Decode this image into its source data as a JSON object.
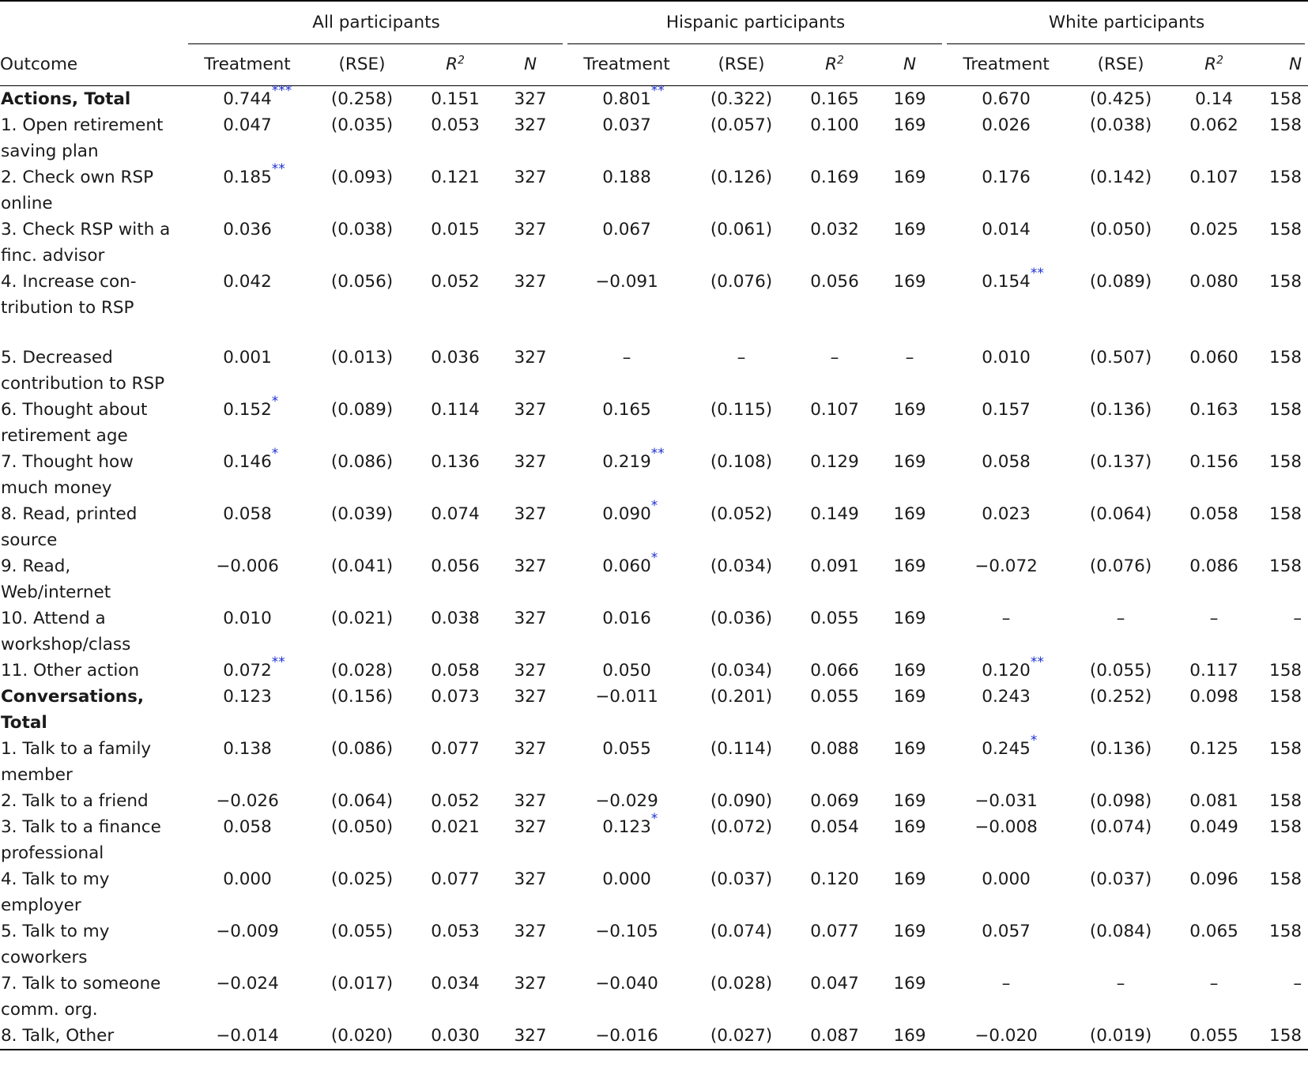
{
  "header": {
    "groups": [
      "All participants",
      "Hispanic participants",
      "White participants"
    ],
    "outcome_label": "Outcome",
    "treatment_label": "Treatment",
    "rse_label": "(RSE)",
    "r2_label": "R",
    "r2_sup": "2",
    "n_label": "N"
  },
  "rows": [
    {
      "label": "Actions, Total",
      "bold": true,
      "cells": [
        [
          "0.744",
          "***"
        ],
        [
          "(0.258)",
          ""
        ],
        [
          "0.151",
          ""
        ],
        [
          "327",
          ""
        ],
        [
          "0.801",
          "**"
        ],
        [
          "(0.322)",
          ""
        ],
        [
          "0.165",
          ""
        ],
        [
          "169",
          ""
        ],
        [
          "0.670",
          ""
        ],
        [
          "(0.425)",
          ""
        ],
        [
          "0.14",
          ""
        ],
        [
          "158",
          ""
        ]
      ]
    },
    {
      "label": "1. Open retirement saving plan",
      "bold": false,
      "cells": [
        [
          "0.047",
          ""
        ],
        [
          "(0.035)",
          ""
        ],
        [
          "0.053",
          ""
        ],
        [
          "327",
          ""
        ],
        [
          "0.037",
          ""
        ],
        [
          "(0.057)",
          ""
        ],
        [
          "0.100",
          ""
        ],
        [
          "169",
          ""
        ],
        [
          "0.026",
          ""
        ],
        [
          "(0.038)",
          ""
        ],
        [
          "0.062",
          ""
        ],
        [
          "158",
          ""
        ]
      ]
    },
    {
      "label": "2. Check own RSP online",
      "bold": false,
      "cells": [
        [
          "0.185",
          "**"
        ],
        [
          "(0.093)",
          ""
        ],
        [
          "0.121",
          ""
        ],
        [
          "327",
          ""
        ],
        [
          "0.188",
          ""
        ],
        [
          "(0.126)",
          ""
        ],
        [
          "0.169",
          ""
        ],
        [
          "169",
          ""
        ],
        [
          "0.176",
          ""
        ],
        [
          "(0.142)",
          ""
        ],
        [
          "0.107",
          ""
        ],
        [
          "158",
          ""
        ]
      ]
    },
    {
      "label": "3. Check RSP with a finc. advisor",
      "bold": false,
      "cells": [
        [
          "0.036",
          ""
        ],
        [
          "(0.038)",
          ""
        ],
        [
          "0.015",
          ""
        ],
        [
          "327",
          ""
        ],
        [
          "0.067",
          ""
        ],
        [
          "(0.061)",
          ""
        ],
        [
          "0.032",
          ""
        ],
        [
          "169",
          ""
        ],
        [
          "0.014",
          ""
        ],
        [
          "(0.050)",
          ""
        ],
        [
          "0.025",
          ""
        ],
        [
          "158",
          ""
        ]
      ]
    },
    {
      "label": "4. Increase con-tribution to RSP",
      "bold": false,
      "cells": [
        [
          "0.042",
          ""
        ],
        [
          "(0.056)",
          ""
        ],
        [
          "0.052",
          ""
        ],
        [
          "327",
          ""
        ],
        [
          "−0.091",
          ""
        ],
        [
          "(0.076)",
          ""
        ],
        [
          "0.056",
          ""
        ],
        [
          "169",
          ""
        ],
        [
          "0.154",
          "**"
        ],
        [
          "(0.089)",
          ""
        ],
        [
          "0.080",
          ""
        ],
        [
          "158",
          ""
        ]
      ]
    },
    {
      "label": "5. Decreased contribution to RSP",
      "bold": false,
      "cells": [
        [
          "0.001",
          ""
        ],
        [
          "(0.013)",
          ""
        ],
        [
          "0.036",
          ""
        ],
        [
          "327",
          ""
        ],
        [
          "–",
          ""
        ],
        [
          "–",
          ""
        ],
        [
          "–",
          ""
        ],
        [
          "–",
          ""
        ],
        [
          "0.010",
          ""
        ],
        [
          "(0.507)",
          ""
        ],
        [
          "0.060",
          ""
        ],
        [
          "158",
          ""
        ]
      ]
    },
    {
      "label": "6. Thought about retirement age",
      "bold": false,
      "cells": [
        [
          "0.152",
          "*"
        ],
        [
          "(0.089)",
          ""
        ],
        [
          "0.114",
          ""
        ],
        [
          "327",
          ""
        ],
        [
          "0.165",
          ""
        ],
        [
          "(0.115)",
          ""
        ],
        [
          "0.107",
          ""
        ],
        [
          "169",
          ""
        ],
        [
          "0.157",
          ""
        ],
        [
          "(0.136)",
          ""
        ],
        [
          "0.163",
          ""
        ],
        [
          "158",
          ""
        ]
      ]
    },
    {
      "label": "7. Thought how much money",
      "bold": false,
      "cells": [
        [
          "0.146",
          "*"
        ],
        [
          "(0.086)",
          ""
        ],
        [
          "0.136",
          ""
        ],
        [
          "327",
          ""
        ],
        [
          "0.219",
          "**"
        ],
        [
          "(0.108)",
          ""
        ],
        [
          "0.129",
          ""
        ],
        [
          "169",
          ""
        ],
        [
          "0.058",
          ""
        ],
        [
          "(0.137)",
          ""
        ],
        [
          "0.156",
          ""
        ],
        [
          "158",
          ""
        ]
      ]
    },
    {
      "label": "8. Read, printed source",
      "bold": false,
      "cells": [
        [
          "0.058",
          ""
        ],
        [
          "(0.039)",
          ""
        ],
        [
          "0.074",
          ""
        ],
        [
          "327",
          ""
        ],
        [
          "0.090",
          "*"
        ],
        [
          "(0.052)",
          ""
        ],
        [
          "0.149",
          ""
        ],
        [
          "169",
          ""
        ],
        [
          "0.023",
          ""
        ],
        [
          "(0.064)",
          ""
        ],
        [
          "0.058",
          ""
        ],
        [
          "158",
          ""
        ]
      ]
    },
    {
      "label": "9. Read, Web/internet",
      "bold": false,
      "cells": [
        [
          "−0.006",
          ""
        ],
        [
          "(0.041)",
          ""
        ],
        [
          "0.056",
          ""
        ],
        [
          "327",
          ""
        ],
        [
          "0.060",
          "*"
        ],
        [
          "(0.034)",
          ""
        ],
        [
          "0.091",
          ""
        ],
        [
          "169",
          ""
        ],
        [
          "−0.072",
          ""
        ],
        [
          "(0.076)",
          ""
        ],
        [
          "0.086",
          ""
        ],
        [
          "158",
          ""
        ]
      ]
    },
    {
      "label": "10. Attend a workshop/class",
      "bold": false,
      "cells": [
        [
          "0.010",
          ""
        ],
        [
          "(0.021)",
          ""
        ],
        [
          "0.038",
          ""
        ],
        [
          "327",
          ""
        ],
        [
          "0.016",
          ""
        ],
        [
          "(0.036)",
          ""
        ],
        [
          "0.055",
          ""
        ],
        [
          "169",
          ""
        ],
        [
          "–",
          ""
        ],
        [
          "–",
          ""
        ],
        [
          "–",
          ""
        ],
        [
          "–",
          ""
        ]
      ]
    },
    {
      "label": "11. Other action",
      "bold": false,
      "cells": [
        [
          "0.072",
          "**"
        ],
        [
          "(0.028)",
          ""
        ],
        [
          "0.058",
          ""
        ],
        [
          "327",
          ""
        ],
        [
          "0.050",
          ""
        ],
        [
          "(0.034)",
          ""
        ],
        [
          "0.066",
          ""
        ],
        [
          "169",
          ""
        ],
        [
          "0.120",
          "**"
        ],
        [
          "(0.055)",
          ""
        ],
        [
          "0.117",
          ""
        ],
        [
          "158",
          ""
        ]
      ]
    },
    {
      "label": "Conversations, Total",
      "bold": true,
      "cells": [
        [
          "0.123",
          ""
        ],
        [
          "(0.156)",
          ""
        ],
        [
          "0.073",
          ""
        ],
        [
          "327",
          ""
        ],
        [
          "−0.011",
          ""
        ],
        [
          "(0.201)",
          ""
        ],
        [
          "0.055",
          ""
        ],
        [
          "169",
          ""
        ],
        [
          "0.243",
          ""
        ],
        [
          "(0.252)",
          ""
        ],
        [
          "0.098",
          ""
        ],
        [
          "158",
          ""
        ]
      ]
    },
    {
      "label": "1. Talk to a family member",
      "bold": false,
      "cells": [
        [
          "0.138",
          ""
        ],
        [
          "(0.086)",
          ""
        ],
        [
          "0.077",
          ""
        ],
        [
          "327",
          ""
        ],
        [
          "0.055",
          ""
        ],
        [
          "(0.114)",
          ""
        ],
        [
          "0.088",
          ""
        ],
        [
          "169",
          ""
        ],
        [
          "0.245",
          "*"
        ],
        [
          "(0.136)",
          ""
        ],
        [
          "0.125",
          ""
        ],
        [
          "158",
          ""
        ]
      ]
    },
    {
      "label": "2. Talk to a friend",
      "bold": false,
      "cells": [
        [
          "−0.026",
          ""
        ],
        [
          "(0.064)",
          ""
        ],
        [
          "0.052",
          ""
        ],
        [
          "327",
          ""
        ],
        [
          "−0.029",
          ""
        ],
        [
          "(0.090)",
          ""
        ],
        [
          "0.069",
          ""
        ],
        [
          "169",
          ""
        ],
        [
          "−0.031",
          ""
        ],
        [
          "(0.098)",
          ""
        ],
        [
          "0.081",
          ""
        ],
        [
          "158",
          ""
        ]
      ]
    },
    {
      "label": "3. Talk to a finance professional",
      "bold": false,
      "cells": [
        [
          "0.058",
          ""
        ],
        [
          "(0.050)",
          ""
        ],
        [
          "0.021",
          ""
        ],
        [
          "327",
          ""
        ],
        [
          "0.123",
          "*"
        ],
        [
          "(0.072)",
          ""
        ],
        [
          "0.054",
          ""
        ],
        [
          "169",
          ""
        ],
        [
          "−0.008",
          ""
        ],
        [
          "(0.074)",
          ""
        ],
        [
          "0.049",
          ""
        ],
        [
          "158",
          ""
        ]
      ]
    },
    {
      "label": "4. Talk to my employer",
      "bold": false,
      "cells": [
        [
          "0.000",
          ""
        ],
        [
          "(0.025)",
          ""
        ],
        [
          "0.077",
          ""
        ],
        [
          "327",
          ""
        ],
        [
          "0.000",
          ""
        ],
        [
          "(0.037)",
          ""
        ],
        [
          "0.120",
          ""
        ],
        [
          "169",
          ""
        ],
        [
          "0.000",
          ""
        ],
        [
          "(0.037)",
          ""
        ],
        [
          "0.096",
          ""
        ],
        [
          "158",
          ""
        ]
      ]
    },
    {
      "label": "5. Talk to my coworkers",
      "bold": false,
      "cells": [
        [
          "−0.009",
          ""
        ],
        [
          "(0.055)",
          ""
        ],
        [
          "0.053",
          ""
        ],
        [
          "327",
          ""
        ],
        [
          "−0.105",
          ""
        ],
        [
          "(0.074)",
          ""
        ],
        [
          "0.077",
          ""
        ],
        [
          "169",
          ""
        ],
        [
          "0.057",
          ""
        ],
        [
          "(0.084)",
          ""
        ],
        [
          "0.065",
          ""
        ],
        [
          "158",
          ""
        ]
      ]
    },
    {
      "label": "7. Talk to someone comm. org.",
      "bold": false,
      "cells": [
        [
          "−0.024",
          ""
        ],
        [
          "(0.017)",
          ""
        ],
        [
          "0.034",
          ""
        ],
        [
          "327",
          ""
        ],
        [
          "−0.040",
          ""
        ],
        [
          "(0.028)",
          ""
        ],
        [
          "0.047",
          ""
        ],
        [
          "169",
          ""
        ],
        [
          "–",
          ""
        ],
        [
          "–",
          ""
        ],
        [
          "–",
          ""
        ],
        [
          "–",
          ""
        ]
      ]
    },
    {
      "label": "8. Talk, Other",
      "bold": false,
      "cells": [
        [
          "−0.014",
          ""
        ],
        [
          "(0.020)",
          ""
        ],
        [
          "0.030",
          ""
        ],
        [
          "327",
          ""
        ],
        [
          "−0.016",
          ""
        ],
        [
          "(0.027)",
          ""
        ],
        [
          "0.087",
          ""
        ],
        [
          "169",
          ""
        ],
        [
          "−0.020",
          ""
        ],
        [
          "(0.019)",
          ""
        ],
        [
          "0.055",
          ""
        ],
        [
          "158",
          ""
        ]
      ]
    }
  ],
  "colors": {
    "stars": "#1b2fd0",
    "text": "#1a1a1a",
    "rule": "#000000"
  }
}
